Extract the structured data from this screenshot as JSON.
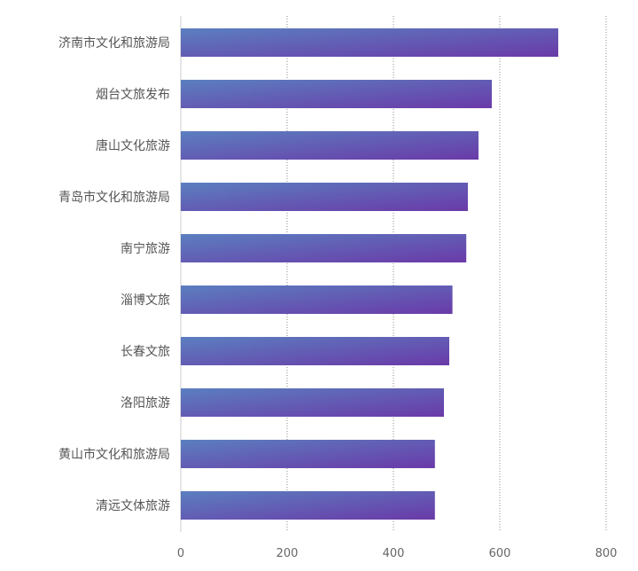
{
  "chart_data": {
    "type": "bar",
    "orientation": "horizontal",
    "categories": [
      "济南市文化和旅游局",
      "烟台文旅发布",
      "唐山文化旅游",
      "青岛市文化和旅游局",
      "南宁旅游",
      "淄博文旅",
      "长春文旅",
      "洛阳旅游",
      "黄山市文化和旅游局",
      "清远文体旅游"
    ],
    "values": [
      710,
      585,
      560,
      540,
      537,
      511,
      505,
      495,
      478,
      478
    ],
    "xlim": [
      0,
      800
    ],
    "x_ticks": [
      "0",
      "200",
      "400",
      "600",
      "800"
    ],
    "grid": "vertical-dotted",
    "legend": "none",
    "colors": {
      "bar_start": "#5b7fc0",
      "bar_end": "#6a3aa8",
      "grid": "#888888",
      "axis": "#cccccc"
    }
  }
}
